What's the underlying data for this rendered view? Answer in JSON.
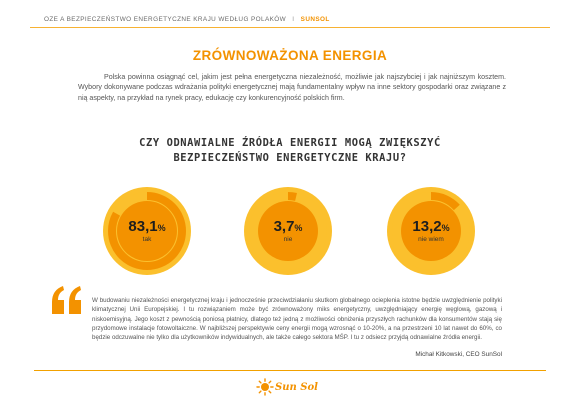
{
  "header": {
    "left_text": "OZE A BEZPIECZEŃSTWO ENERGETYCZNE KRAJU WEDŁUG POLAKÓW",
    "separator": "I",
    "brand": "SUNSOL"
  },
  "section": {
    "title": "ZRÓWNOWAŻONA ENERGIA",
    "intro": "Polska powinna osiągnąć cel, jakim jest pełna energetyczna niezależność, możliwie jak najszybciej i jak najniższym kosztem. Wybory dokonywane podczas wdrażania polityki energetycznej mają fundamentalny wpływ na inne sektory gospodarki oraz związane z nią aspekty, na przykład na rynek pracy, edukację czy konkurencyjność polskich firm."
  },
  "question": {
    "line1": "CZY ODNAWIALNE ŹRÓDŁA ENERGII MOGĄ ZWIĘKSZYĆ",
    "line2": "BEZPIECZEŃSTWO ENERGETYCZNE KRAJU?"
  },
  "chart_data": {
    "type": "pie",
    "title": "",
    "unit": "%",
    "slices": [
      {
        "label": "tak",
        "value_text": "83,1",
        "value": 83.1
      },
      {
        "label": "nie",
        "value_text": "3,7",
        "value": 3.7
      },
      {
        "label": "nie wiem",
        "value_text": "13,2",
        "value": 13.2
      }
    ],
    "colors": {
      "filled": "#f39200",
      "remaining": "#fbc02d",
      "center": "#ffffff"
    }
  },
  "quote": {
    "text": "W budowaniu niezależności energetycznej kraju i jednocześnie przeciwdziałaniu skutkom globalnego ocieplenia istotne będzie uwzględnienie polityki klimatycznej Unii Europejskiej. I tu rozwiązaniem może być zrównoważony miks energetyczny, uwzględniający energię węglową, gazową i niskoemisyjną. Jego koszt z pewnością poniosą płatnicy, dlatego też jedną z możliwości obniżenia przyszłych rachunków dla konsumentów stają się przydomowe instalacje fotowoltaiczne. W najbliższej perspektywie ceny energii mogą wzrosnąć o 10-20%, a na przestrzeni 10 lat nawet do 60%, co będzie odczuwalne nie tylko dla użytkowników indywidualnych, ale także całego sektora MŚP. I tu z odsiecz przyjdą odnawialne źródła energii.",
    "author": "Michał Kitkowski, CEO SunSol"
  },
  "footer": {
    "logo_text": "Sun Sol"
  }
}
